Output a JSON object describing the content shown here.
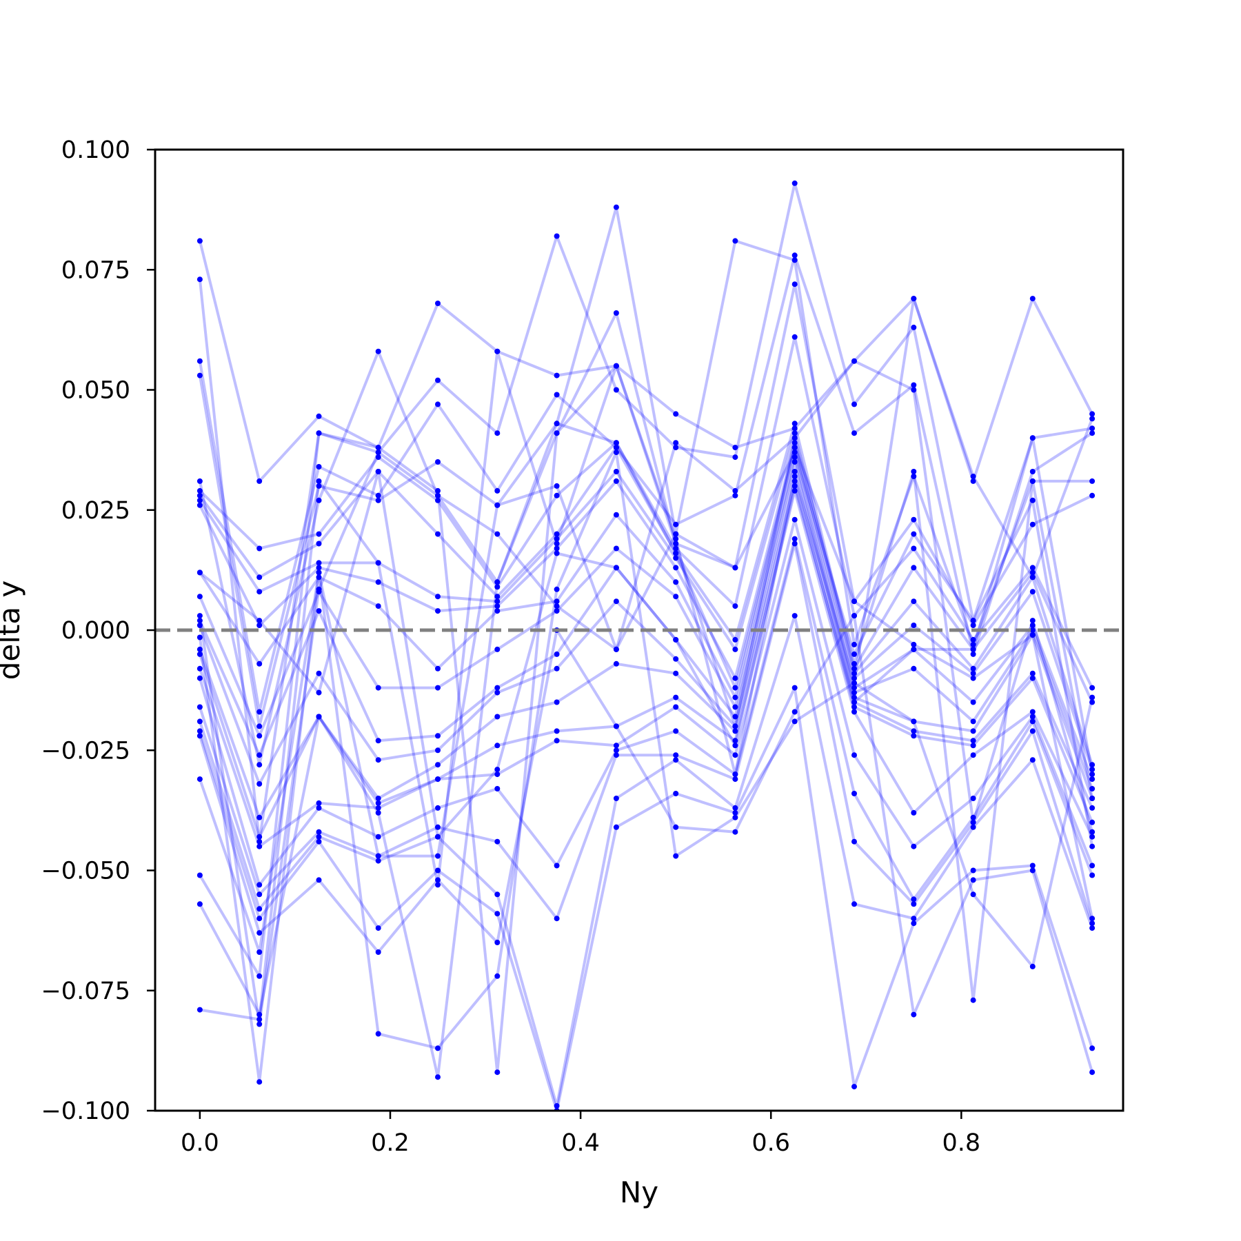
{
  "chart_data": {
    "type": "line",
    "xlabel": "Ny",
    "ylabel": "delta y",
    "xlim": [
      -0.047,
      0.97
    ],
    "ylim": [
      -0.1,
      0.1
    ],
    "x_ticks": [
      0.0,
      0.2,
      0.4,
      0.6,
      0.8
    ],
    "x_tick_labels": [
      "0.0",
      "0.2",
      "0.4",
      "0.6",
      "0.8"
    ],
    "y_ticks": [
      -0.1,
      -0.075,
      -0.05,
      -0.025,
      0.0,
      0.025,
      0.05,
      0.075,
      0.1
    ],
    "y_tick_labels": [
      "−0.100",
      "−0.075",
      "−0.050",
      "−0.025",
      "0.000",
      "0.025",
      "0.050",
      "0.075",
      "0.100"
    ],
    "reference_line": {
      "y": 0.0,
      "style": "dashed",
      "color": "#808080"
    },
    "series_color": "#0000ff",
    "line_alpha": 0.25,
    "grid": false,
    "x": [
      0.0,
      0.0625,
      0.125,
      0.1875,
      0.25,
      0.3125,
      0.375,
      0.4375,
      0.5,
      0.5625,
      0.625,
      0.6875,
      0.75,
      0.8125,
      0.875,
      0.9375
    ],
    "series": [
      {
        "values": [
          0.081,
          0.031,
          0.0445,
          0.038,
          0.068,
          0.058,
          0.053,
          0.055,
          0.045,
          0.038,
          0.042,
          0.056,
          0.069,
          0.031,
          0.069,
          0.045
        ]
      },
      {
        "values": [
          0.073,
          -0.044,
          0.041,
          0.037,
          0.052,
          0.041,
          0.082,
          0.05,
          0.038,
          0.036,
          0.093,
          0.047,
          0.063,
          0.002,
          0.04,
          0.042
        ]
      },
      {
        "values": [
          0.056,
          -0.017,
          0.034,
          0.028,
          0.047,
          0.029,
          0.049,
          0.038,
          0.022,
          0.028,
          0.078,
          0.041,
          0.051,
          -0.005,
          0.033,
          0.041
        ]
      },
      {
        "values": [
          0.053,
          -0.02,
          0.03,
          0.027,
          0.035,
          0.026,
          0.043,
          0.088,
          0.02,
          0.081,
          0.077,
          -0.003,
          0.032,
          -0.003,
          0.031,
          0.031
        ]
      },
      {
        "values": [
          0.031,
          -0.028,
          0.027,
          0.058,
          0.028,
          0.01,
          0.041,
          0.066,
          0.018,
          0.013,
          0.072,
          0.006,
          0.023,
          0.001,
          0.022,
          0.028
        ]
      },
      {
        "values": [
          0.029,
          0.017,
          0.02,
          0.036,
          0.027,
          0.009,
          0.028,
          0.039,
          0.017,
          0.005,
          0.061,
          0.003,
          0.017,
          -0.002,
          0.013,
          -0.012
        ]
      },
      {
        "values": [
          0.028,
          0.011,
          0.018,
          0.033,
          0.02,
          0.007,
          0.02,
          0.038,
          0.016,
          -0.002,
          0.043,
          -0.008,
          0.013,
          -0.004,
          0.012,
          -0.015
        ]
      },
      {
        "values": [
          0.027,
          0.008,
          0.014,
          0.014,
          0.007,
          0.006,
          0.019,
          0.033,
          0.015,
          -0.004,
          0.041,
          -0.009,
          0.006,
          -0.008,
          0.011,
          -0.028
        ]
      },
      {
        "values": [
          0.026,
          0.001,
          0.013,
          0.01,
          0.004,
          0.005,
          0.017,
          0.031,
          0.013,
          -0.01,
          0.039,
          -0.01,
          0.001,
          -0.009,
          0.008,
          -0.029
        ]
      },
      {
        "values": [
          0.012,
          -0.007,
          0.011,
          0.005,
          -0.008,
          0.004,
          0.006,
          0.024,
          0.01,
          -0.014,
          0.038,
          -0.012,
          -0.004,
          -0.015,
          0.001,
          -0.031
        ]
      },
      {
        "values": [
          0.007,
          -0.022,
          0.008,
          -0.012,
          -0.012,
          -0.004,
          0.004,
          0.017,
          0.007,
          -0.016,
          0.036,
          -0.013,
          -0.008,
          -0.019,
          0.0,
          -0.033
        ]
      },
      {
        "values": [
          0.002,
          -0.026,
          0.004,
          -0.023,
          -0.022,
          -0.012,
          -0.005,
          0.013,
          -0.002,
          -0.018,
          0.035,
          -0.014,
          -0.019,
          -0.021,
          -0.001,
          -0.035
        ]
      },
      {
        "values": [
          0.001,
          -0.032,
          -0.009,
          -0.027,
          -0.025,
          -0.013,
          -0.008,
          0.006,
          -0.006,
          -0.02,
          0.033,
          -0.015,
          -0.021,
          -0.023,
          -0.009,
          -0.037
        ]
      },
      {
        "values": [
          -0.004,
          -0.039,
          -0.018,
          -0.035,
          -0.028,
          -0.018,
          -0.015,
          -0.007,
          -0.009,
          -0.021,
          0.031,
          -0.016,
          -0.022,
          -0.024,
          -0.01,
          -0.04
        ]
      },
      {
        "values": [
          -0.005,
          -0.043,
          -0.018,
          -0.036,
          -0.031,
          -0.024,
          -0.021,
          -0.02,
          -0.014,
          -0.023,
          0.029,
          -0.017,
          -0.038,
          -0.026,
          -0.017,
          -0.043
        ]
      },
      {
        "values": [
          -0.008,
          -0.045,
          -0.036,
          -0.037,
          -0.031,
          -0.03,
          -0.023,
          -0.024,
          -0.016,
          -0.026,
          0.023,
          -0.026,
          -0.045,
          -0.035,
          -0.018,
          -0.049
        ]
      },
      {
        "values": [
          -0.01,
          -0.053,
          -0.037,
          -0.043,
          -0.037,
          -0.033,
          -0.049,
          -0.025,
          -0.021,
          -0.03,
          0.019,
          -0.034,
          -0.056,
          -0.039,
          -0.019,
          -0.051
        ]
      },
      {
        "values": [
          -0.016,
          -0.055,
          -0.042,
          -0.047,
          -0.041,
          -0.044,
          -0.06,
          -0.026,
          -0.026,
          -0.031,
          0.018,
          -0.044,
          -0.057,
          -0.04,
          -0.021,
          -0.061
        ]
      },
      {
        "values": [
          -0.019,
          -0.058,
          -0.043,
          -0.048,
          -0.043,
          -0.055,
          -0.099,
          -0.035,
          -0.027,
          -0.037,
          0.003,
          -0.057,
          -0.06,
          -0.041,
          -0.027,
          -0.062
        ]
      },
      {
        "values": [
          -0.021,
          -0.06,
          -0.044,
          -0.062,
          -0.05,
          -0.059,
          -0.1,
          -0.041,
          -0.034,
          -0.038,
          -0.012,
          -0.095,
          -0.061,
          -0.05,
          -0.049,
          -0.087
        ]
      },
      {
        "values": [
          -0.022,
          -0.063,
          -0.052,
          -0.067,
          -0.052,
          -0.065,
          0.0,
          -0.02,
          -0.041,
          -0.042,
          -0.017,
          0.003,
          -0.08,
          -0.052,
          -0.05,
          -0.092
        ]
      },
      {
        "values": [
          -0.031,
          -0.067,
          0.012,
          -0.084,
          -0.087,
          -0.072,
          0.0085,
          0.037,
          -0.047,
          -0.039,
          -0.019,
          -0.011,
          -0.019,
          -0.055,
          -0.07,
          -0.014
        ]
      },
      {
        "values": [
          -0.051,
          -0.072,
          0.041,
          0.038,
          0.029,
          -0.092,
          0.041,
          0.055,
          0.018,
          -0.02,
          0.04,
          -0.007,
          0.033,
          -0.077,
          0.031,
          -0.035
        ]
      },
      {
        "values": [
          -0.057,
          -0.08,
          -0.018,
          -0.038,
          -0.093,
          0.01,
          0.043,
          0.039,
          0.016,
          -0.012,
          0.038,
          0.006,
          -0.003,
          -0.01,
          -0.001,
          -0.06
        ]
      },
      {
        "values": [
          -0.079,
          -0.081,
          0.031,
          0.014,
          -0.053,
          0.058,
          0.018,
          0.055,
          0.019,
          -0.03,
          0.032,
          -0.011,
          0.069,
          0.032,
          0.011,
          0.044
        ]
      },
      {
        "values": [
          0.003,
          -0.082,
          0.0085,
          0.037,
          0.028,
          0.02,
          0.005,
          -0.004,
          0.039,
          0.029,
          0.04,
          0.056,
          0.05,
          -0.04,
          0.002,
          -0.042
        ]
      },
      {
        "values": [
          -0.0015,
          -0.094,
          0.012,
          -0.047,
          -0.047,
          0.026,
          0.03,
          -0.004,
          0.02,
          0.013,
          0.037,
          -0.005,
          0.02,
          0.002,
          0.027,
          -0.045
        ]
      },
      {
        "values": [
          0.012,
          0.002,
          -0.013,
          0.033,
          -0.043,
          -0.029,
          0.016,
          0.013,
          -0.002,
          -0.024,
          0.03,
          -0.015,
          -0.004,
          -0.004,
          0.04,
          -0.03
        ]
      }
    ]
  }
}
